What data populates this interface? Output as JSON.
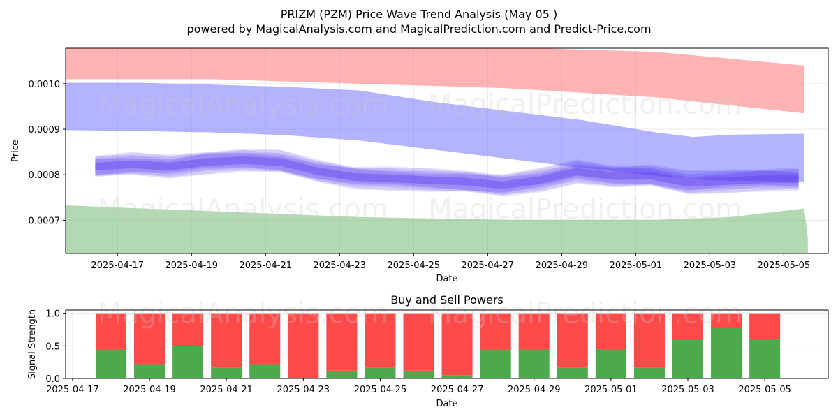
{
  "page": {
    "title_line1": "PRIZM (PZM) Price Wave Trend Analysis (May 05 )",
    "title_line2": "powered by MagicalAnalysis.com and MagicalPrediction.com and Predict-Price.com",
    "watermark_left": "MagicalAnalysis.com",
    "watermark_right": "MagicalPrediction.com"
  },
  "colors": {
    "upper_band": "#ff8080",
    "middle_band": "#8080ff",
    "lower_band": "#80c080",
    "wave": "#5533ee",
    "buy": "#4caa4c",
    "sell": "#ff4a4a"
  },
  "chart_data": [
    {
      "type": "area",
      "title": "",
      "xlabel": "Date",
      "ylabel": "Price",
      "ylim": [
        0.000627,
        0.001078
      ],
      "xlim": [
        "2025-04-15.6",
        "2025-05-06.2"
      ],
      "x_ticks": [
        "2025-04-17",
        "2025-04-19",
        "2025-04-21",
        "2025-04-23",
        "2025-04-25",
        "2025-04-27",
        "2025-04-29",
        "2025-05-01",
        "2025-05-03",
        "2025-05-05"
      ],
      "y_ticks": [
        "0.0007",
        "0.0008",
        "0.0009",
        "0.0010"
      ],
      "grid": true,
      "bands": [
        {
          "name": "upper",
          "x_days": [
            0,
            4,
            8,
            12,
            16,
            20
          ],
          "top": [
            0.00108,
            0.00108,
            0.00108,
            0.00108,
            0.00107,
            0.00104
          ],
          "bottom": [
            0.00101,
            0.00101,
            0.001,
            0.00099,
            0.00097,
            0.000935
          ]
        },
        {
          "name": "middle",
          "x_days": [
            0,
            2,
            4,
            6,
            8,
            10,
            12,
            14,
            16,
            17,
            18,
            20
          ],
          "top": [
            0.001002,
            0.001002,
            0.000998,
            0.000993,
            0.000985,
            0.00096,
            0.00094,
            0.00092,
            0.000893,
            0.000883,
            0.000888,
            0.00089
          ],
          "bottom": [
            0.000898,
            0.000896,
            0.000893,
            0.000887,
            0.000875,
            0.000855,
            0.000835,
            0.000815,
            0.000798,
            0.00079,
            0.000787,
            0.000785
          ]
        },
        {
          "name": "lower",
          "x_days": [
            0,
            4,
            8,
            12,
            16,
            18,
            20,
            20.1
          ],
          "top": [
            0.000733,
            0.00072,
            0.000707,
            0.000701,
            0.000701,
            0.000707,
            0.000726,
            0.00066
          ],
          "bottom": [
            0.000627,
            0.000627,
            0.000627,
            0.000627,
            0.000627,
            0.000627,
            0.000627,
            0.000627
          ]
        }
      ],
      "wave": {
        "name": "price wave",
        "x_days": [
          0.4,
          1.4,
          2.4,
          3.4,
          4.4,
          5.4,
          6.4,
          7.4,
          8.4,
          9.4,
          10.4,
          11.4,
          12.4,
          13.4,
          14.4,
          15.4,
          16.4,
          17.4,
          18.4,
          19.4
        ],
        "values": [
          0.000818,
          0.000823,
          0.000818,
          0.000828,
          0.000832,
          0.000828,
          0.000808,
          0.000795,
          0.000792,
          0.000788,
          0.000785,
          0.000777,
          0.000788,
          0.000807,
          0.000797,
          0.000798,
          0.000782,
          0.000786,
          0.00079,
          0.00079
        ],
        "spread": 2.4e-05
      }
    },
    {
      "type": "bar",
      "title": "Buy and Sell Powers",
      "xlabel": "Date",
      "ylabel": "Signal Strength",
      "ylim": [
        0,
        1.05
      ],
      "x_ticks": [
        "2025-04-17",
        "2025-04-19",
        "2025-04-21",
        "2025-04-23",
        "2025-04-25",
        "2025-04-27",
        "2025-04-29",
        "2025-05-01",
        "2025-05-03",
        "2025-05-05"
      ],
      "y_ticks": [
        "0.0",
        "0.5",
        "1.0"
      ],
      "grid": true,
      "categories": [
        "2025-04-18",
        "2025-04-19",
        "2025-04-20",
        "2025-04-21",
        "2025-04-22",
        "2025-04-23",
        "2025-04-24",
        "2025-04-25",
        "2025-04-26",
        "2025-04-27",
        "2025-04-28",
        "2025-04-29",
        "2025-04-30",
        "2025-05-01",
        "2025-05-02",
        "2025-05-03",
        "2025-05-04",
        "2025-05-05"
      ],
      "series": [
        {
          "name": "Buy",
          "values": [
            0.45,
            0.22,
            0.5,
            0.17,
            0.22,
            0.0,
            0.12,
            0.17,
            0.12,
            0.05,
            0.45,
            0.45,
            0.17,
            0.45,
            0.17,
            0.61,
            0.78,
            0.61
          ]
        },
        {
          "name": "Sell",
          "values": [
            0.55,
            0.78,
            0.5,
            0.83,
            0.78,
            1.0,
            0.88,
            0.83,
            0.88,
            0.95,
            0.55,
            0.55,
            0.83,
            0.55,
            0.83,
            0.39,
            0.22,
            0.39
          ]
        }
      ]
    }
  ]
}
